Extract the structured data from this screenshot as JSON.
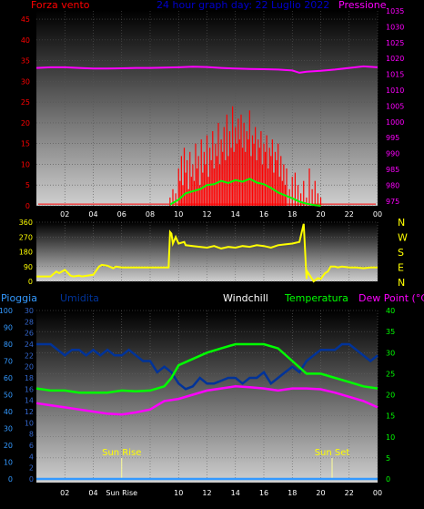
{
  "header": {
    "wind_label": "Forza vento",
    "center_title": "24 hour graph day: 22 Luglio 2022",
    "pressure_label": "Pressione"
  },
  "mid_header": {
    "rain_label": "Pioggia",
    "humidity_label": "Umidita",
    "windchill_label": "Windchill",
    "temp_label": "Temperatura",
    "dew_label": "Dew Point (°C)"
  },
  "markers": {
    "sunrise": "Sun Rise",
    "sunset": "Sun Set"
  },
  "colors": {
    "wind": "#ff0000",
    "gust": "#00ff00",
    "pressure": "#ff00ff",
    "direction": "#ffff00",
    "temperature": "#00ff00",
    "dewpoint": "#ff00ff",
    "humidity": "#003399",
    "rain": "#3399ff",
    "windchill": "#ffffff",
    "panel_top": "#000000",
    "panel_bottom": "#cfcfcf"
  },
  "chart_data": [
    {
      "type": "line",
      "name": "wind-pressure",
      "x_ticks": [
        "02",
        "04",
        "06",
        "08",
        "10",
        "12",
        "14",
        "16",
        "18",
        "20",
        "22",
        "00"
      ],
      "y_left_ticks": [
        0,
        5,
        10,
        15,
        20,
        25,
        30,
        35,
        40,
        45
      ],
      "y_right_ticks": [
        975,
        980,
        985,
        990,
        995,
        1000,
        1005,
        1010,
        1015,
        1020,
        1025,
        1030,
        1035
      ],
      "ylim_left": [
        0,
        47
      ],
      "ylim_right": [
        973.5,
        1035
      ],
      "series": [
        {
          "name": "Pressione",
          "axis": "right",
          "x": [
            0,
            1,
            2,
            3,
            4,
            5,
            6,
            7,
            8,
            9,
            10,
            11,
            12,
            13,
            14,
            15,
            16,
            17,
            18,
            18.5,
            19,
            20,
            21,
            22,
            23,
            24
          ],
          "y": [
            1017,
            1017.2,
            1017.2,
            1017,
            1016.8,
            1016.8,
            1016.9,
            1017,
            1017,
            1017.1,
            1017.2,
            1017.4,
            1017.3,
            1017,
            1016.8,
            1016.7,
            1016.6,
            1016.5,
            1016.2,
            1015.5,
            1015.8,
            1016.1,
            1016.5,
            1017,
            1017.5,
            1017.2
          ]
        }
      ],
      "wind_bars": {
        "x": [
          9.4,
          9.6,
          9.8,
          10,
          10.1,
          10.2,
          10.3,
          10.4,
          10.5,
          10.6,
          10.7,
          10.8,
          10.9,
          11,
          11.1,
          11.2,
          11.3,
          11.4,
          11.5,
          11.6,
          11.7,
          11.8,
          11.9,
          12,
          12.1,
          12.2,
          12.3,
          12.4,
          12.5,
          12.6,
          12.7,
          12.8,
          12.9,
          13,
          13.1,
          13.2,
          13.3,
          13.4,
          13.5,
          13.6,
          13.7,
          13.8,
          13.9,
          14,
          14.1,
          14.2,
          14.3,
          14.4,
          14.5,
          14.6,
          14.7,
          14.8,
          14.9,
          15,
          15.1,
          15.2,
          15.3,
          15.4,
          15.5,
          15.6,
          15.7,
          15.8,
          15.9,
          16,
          16.1,
          16.2,
          16.3,
          16.4,
          16.5,
          16.6,
          16.7,
          16.8,
          16.9,
          17,
          17.1,
          17.2,
          17.3,
          17.4,
          17.5,
          17.6,
          17.8,
          18,
          18.2,
          18.4,
          18.6,
          18.8,
          19,
          19.2,
          19.4,
          19.6,
          19.8,
          20
        ],
        "y": [
          2,
          4,
          3,
          9,
          6,
          12,
          5,
          14,
          8,
          11,
          4,
          13,
          7,
          10,
          6,
          15,
          9,
          12,
          5,
          16,
          8,
          13,
          10,
          17,
          7,
          14,
          11,
          18,
          9,
          15,
          12,
          20,
          10,
          16,
          13,
          19,
          11,
          22,
          12,
          18,
          14,
          24,
          13,
          19,
          15,
          21,
          16,
          22,
          14,
          20,
          13,
          18,
          16,
          23,
          12,
          17,
          15,
          19,
          11,
          16,
          14,
          18,
          10,
          15,
          13,
          17,
          9,
          14,
          12,
          16,
          8,
          13,
          11,
          15,
          7,
          12,
          6,
          10,
          5,
          9,
          4,
          7,
          8,
          5,
          3,
          6,
          2,
          9,
          4,
          6,
          3,
          2
        ]
      },
      "gust_line": {
        "x": [
          9.4,
          10,
          10.5,
          11,
          11.5,
          12,
          12.5,
          13,
          13.5,
          14,
          14.5,
          15,
          15.5,
          16,
          16.5,
          17,
          17.5,
          18,
          18.5,
          19,
          19.5,
          20
        ],
        "y": [
          0.3,
          1.5,
          3,
          3.5,
          4,
          5,
          5.2,
          6,
          5.5,
          6.2,
          5.8,
          6.5,
          5.6,
          5.2,
          4.3,
          3.2,
          2.5,
          1.8,
          1,
          0.5,
          0.2,
          0
        ]
      }
    },
    {
      "type": "line",
      "name": "wind-direction",
      "x_ticks": [
        "02",
        "04",
        "06",
        "08",
        "10",
        "12",
        "14",
        "16",
        "18",
        "20",
        "22",
        "00"
      ],
      "y_left_ticks": [
        0,
        90,
        180,
        270,
        360
      ],
      "y_right_labels": [
        "N",
        "W",
        "S",
        "E",
        "N"
      ],
      "ylim": [
        0,
        360
      ],
      "series": [
        {
          "name": "direction",
          "x": [
            0,
            1,
            1.4,
            1.6,
            2,
            2.4,
            2.6,
            3,
            3.2,
            4,
            4.4,
            4.6,
            5,
            5.4,
            5.6,
            6,
            7,
            8,
            9,
            9.3,
            9.4,
            9.5,
            9.6,
            9.8,
            10,
            10.4,
            10.5,
            11,
            11.5,
            12,
            12.5,
            13,
            13.5,
            14,
            14.5,
            15,
            15.5,
            16,
            16.5,
            17,
            17.5,
            18,
            18.5,
            18.8,
            19,
            19.05,
            19.5,
            19.8,
            20,
            20.3,
            20.5,
            20.7,
            21,
            21.2,
            21.5,
            22,
            22.5,
            23,
            23.5,
            24
          ],
          "y": [
            30,
            30,
            60,
            50,
            70,
            35,
            30,
            35,
            30,
            40,
            90,
            100,
            95,
            80,
            90,
            85,
            85,
            85,
            85,
            85,
            300,
            290,
            230,
            270,
            230,
            240,
            220,
            215,
            210,
            205,
            215,
            200,
            210,
            205,
            215,
            210,
            220,
            215,
            205,
            220,
            225,
            230,
            240,
            350,
            15,
            60,
            0,
            20,
            15,
            50,
            60,
            90,
            90,
            85,
            90,
            85,
            85,
            80,
            85,
            85
          ]
        }
      ]
    },
    {
      "type": "line",
      "name": "temperature-humidity-rain",
      "x_ticks": [
        "02",
        "04",
        "Sun Rise",
        "10",
        "12",
        "14",
        "16",
        "18",
        "20",
        "22",
        "00"
      ],
      "x_tick_hours": [
        2,
        4,
        6,
        10,
        12,
        14,
        16,
        18,
        20,
        22,
        24
      ],
      "y_rain_ticks": [
        0,
        10,
        20,
        30,
        40,
        50,
        60,
        70,
        80,
        90,
        100
      ],
      "y_hum_ticks": [
        0,
        2,
        4,
        6,
        8,
        10,
        12,
        14,
        16,
        18,
        20,
        22,
        24,
        26,
        28,
        30
      ],
      "y_temp_ticks": [
        0,
        5,
        10,
        15,
        20,
        25,
        30,
        35,
        40
      ],
      "ylim_temp": [
        0,
        40
      ],
      "sunrise_hour": 6,
      "sunset_hour": 20.8,
      "series": [
        {
          "name": "Temperatura",
          "x": [
            0,
            1,
            2,
            3,
            4,
            5,
            6,
            7,
            8,
            9,
            9.5,
            10,
            11,
            12,
            13,
            14,
            15,
            16,
            17,
            18,
            19,
            20,
            21,
            22,
            23,
            24
          ],
          "y": [
            21.5,
            21,
            21,
            20.5,
            20.5,
            20.5,
            21,
            20.8,
            21,
            22,
            24,
            27,
            28.5,
            30,
            31,
            32,
            32,
            32,
            31,
            28,
            25,
            25,
            24,
            23,
            22,
            21.5
          ]
        },
        {
          "name": "Dew Point",
          "x": [
            0,
            1,
            2,
            3,
            4,
            5,
            6,
            7,
            8,
            9,
            10,
            11,
            12,
            13,
            14,
            15,
            16,
            17,
            18,
            19,
            20,
            21,
            22,
            23,
            24
          ],
          "y": [
            18,
            17.5,
            17,
            16.5,
            16,
            15.5,
            15.3,
            15.8,
            16.5,
            18.5,
            19,
            20,
            21,
            21.5,
            22,
            21.8,
            21.5,
            21,
            21.5,
            21.5,
            21.3,
            20.5,
            19.5,
            18.5,
            17
          ]
        },
        {
          "name": "Umidita",
          "x": [
            0,
            0.5,
            1,
            1.5,
            2,
            2.5,
            3,
            3.5,
            4,
            4.5,
            5,
            5.5,
            6,
            6.5,
            7,
            7.5,
            8,
            8.5,
            9,
            9.5,
            10,
            10.5,
            11,
            11.5,
            12,
            12.5,
            13,
            13.5,
            14,
            14.5,
            15,
            15.5,
            16,
            16.5,
            17,
            17.5,
            18,
            18.5,
            19,
            19.5,
            20,
            20.5,
            21,
            21.5,
            22,
            22.5,
            23,
            23.5,
            24
          ],
          "y": [
            24,
            24,
            24,
            23,
            22,
            23,
            23,
            22,
            23,
            22,
            23,
            22,
            22,
            23,
            22,
            21,
            21,
            19,
            20,
            19,
            17,
            16,
            16.5,
            18,
            17,
            17,
            17.5,
            18,
            18,
            17,
            18,
            18,
            19,
            17,
            18,
            19,
            20,
            19,
            21,
            22,
            23,
            23,
            23,
            24,
            24,
            23,
            22,
            21,
            22
          ]
        },
        {
          "name": "Pioggia",
          "x": [
            0,
            24
          ],
          "y": [
            0,
            0
          ]
        }
      ]
    }
  ]
}
